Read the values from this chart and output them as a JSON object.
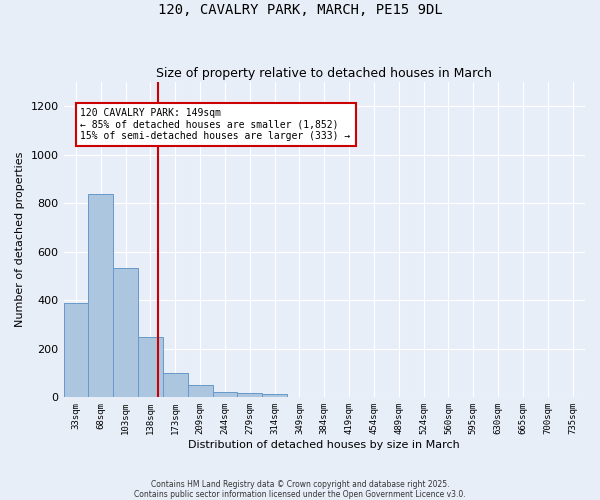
{
  "title": "120, CAVALRY PARK, MARCH, PE15 9DL",
  "subtitle": "Size of property relative to detached houses in March",
  "xlabel": "Distribution of detached houses by size in March",
  "ylabel": "Number of detached properties",
  "bar_categories": [
    "33sqm",
    "68sqm",
    "103sqm",
    "138sqm",
    "173sqm",
    "209sqm",
    "244sqm",
    "279sqm",
    "314sqm",
    "349sqm",
    "384sqm",
    "419sqm",
    "454sqm",
    "489sqm",
    "524sqm",
    "560sqm",
    "595sqm",
    "630sqm",
    "665sqm",
    "700sqm",
    "735sqm"
  ],
  "bar_values": [
    390,
    840,
    535,
    248,
    100,
    52,
    22,
    18,
    12,
    0,
    0,
    0,
    0,
    0,
    0,
    0,
    0,
    0,
    0,
    0,
    0
  ],
  "bar_color": "#adc6e0",
  "bar_edge_color": "#6699cc",
  "ylim": [
    0,
    1300
  ],
  "yticks": [
    0,
    200,
    400,
    600,
    800,
    1000,
    1200
  ],
  "property_size": 149,
  "property_label": "120 CAVALRY PARK: 149sqm",
  "pct_smaller": 85,
  "n_smaller": 1852,
  "pct_larger": 15,
  "n_larger": 333,
  "vline_color": "#cc0000",
  "annotation_box_color": "#cc0000",
  "bg_color": "#e8eef8",
  "grid_color": "#ffffff",
  "footer_line1": "Contains HM Land Registry data © Crown copyright and database right 2025.",
  "footer_line2": "Contains public sector information licensed under the Open Government Licence v3.0."
}
